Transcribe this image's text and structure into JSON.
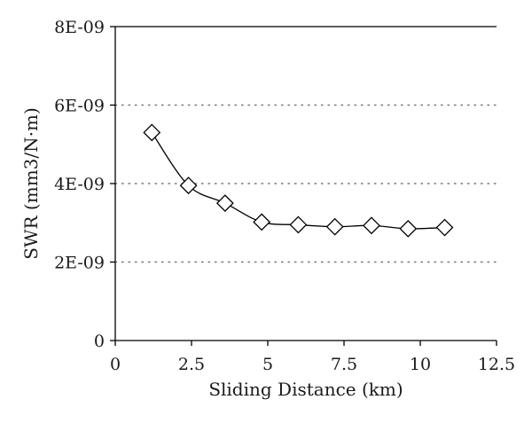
{
  "chart_data": {
    "type": "line",
    "title": "",
    "xlabel": "Sliding Distance (km)",
    "ylabel": "SWR (mm3/N·m)",
    "xlim": [
      0,
      12.5
    ],
    "ylim": [
      0,
      8e-09
    ],
    "x_ticks": [
      0,
      2.5,
      5,
      7.5,
      10,
      12.5
    ],
    "x_tick_labels": [
      "0",
      "2.5",
      "5",
      "7.5",
      "10",
      "12.5"
    ],
    "y_ticks": [
      0,
      2e-09,
      4e-09,
      6e-09,
      8e-09
    ],
    "y_tick_labels": [
      "0",
      "2E-09",
      "4E-09",
      "6E-09",
      "8E-09"
    ],
    "grid": "horizontal dotted",
    "marker": "diamond",
    "series": [
      {
        "x": [
          1.2,
          2.4,
          3.6,
          4.8,
          6.0,
          7.2,
          8.4,
          9.6,
          10.8
        ],
        "values": [
          5.3e-09,
          3.95e-09,
          3.5e-09,
          3.02e-09,
          2.95e-09,
          2.9e-09,
          2.93e-09,
          2.85e-09,
          2.88e-09
        ]
      }
    ],
    "colors": {
      "line": "#000000",
      "grid": "#777777",
      "axis": "#000000"
    }
  }
}
